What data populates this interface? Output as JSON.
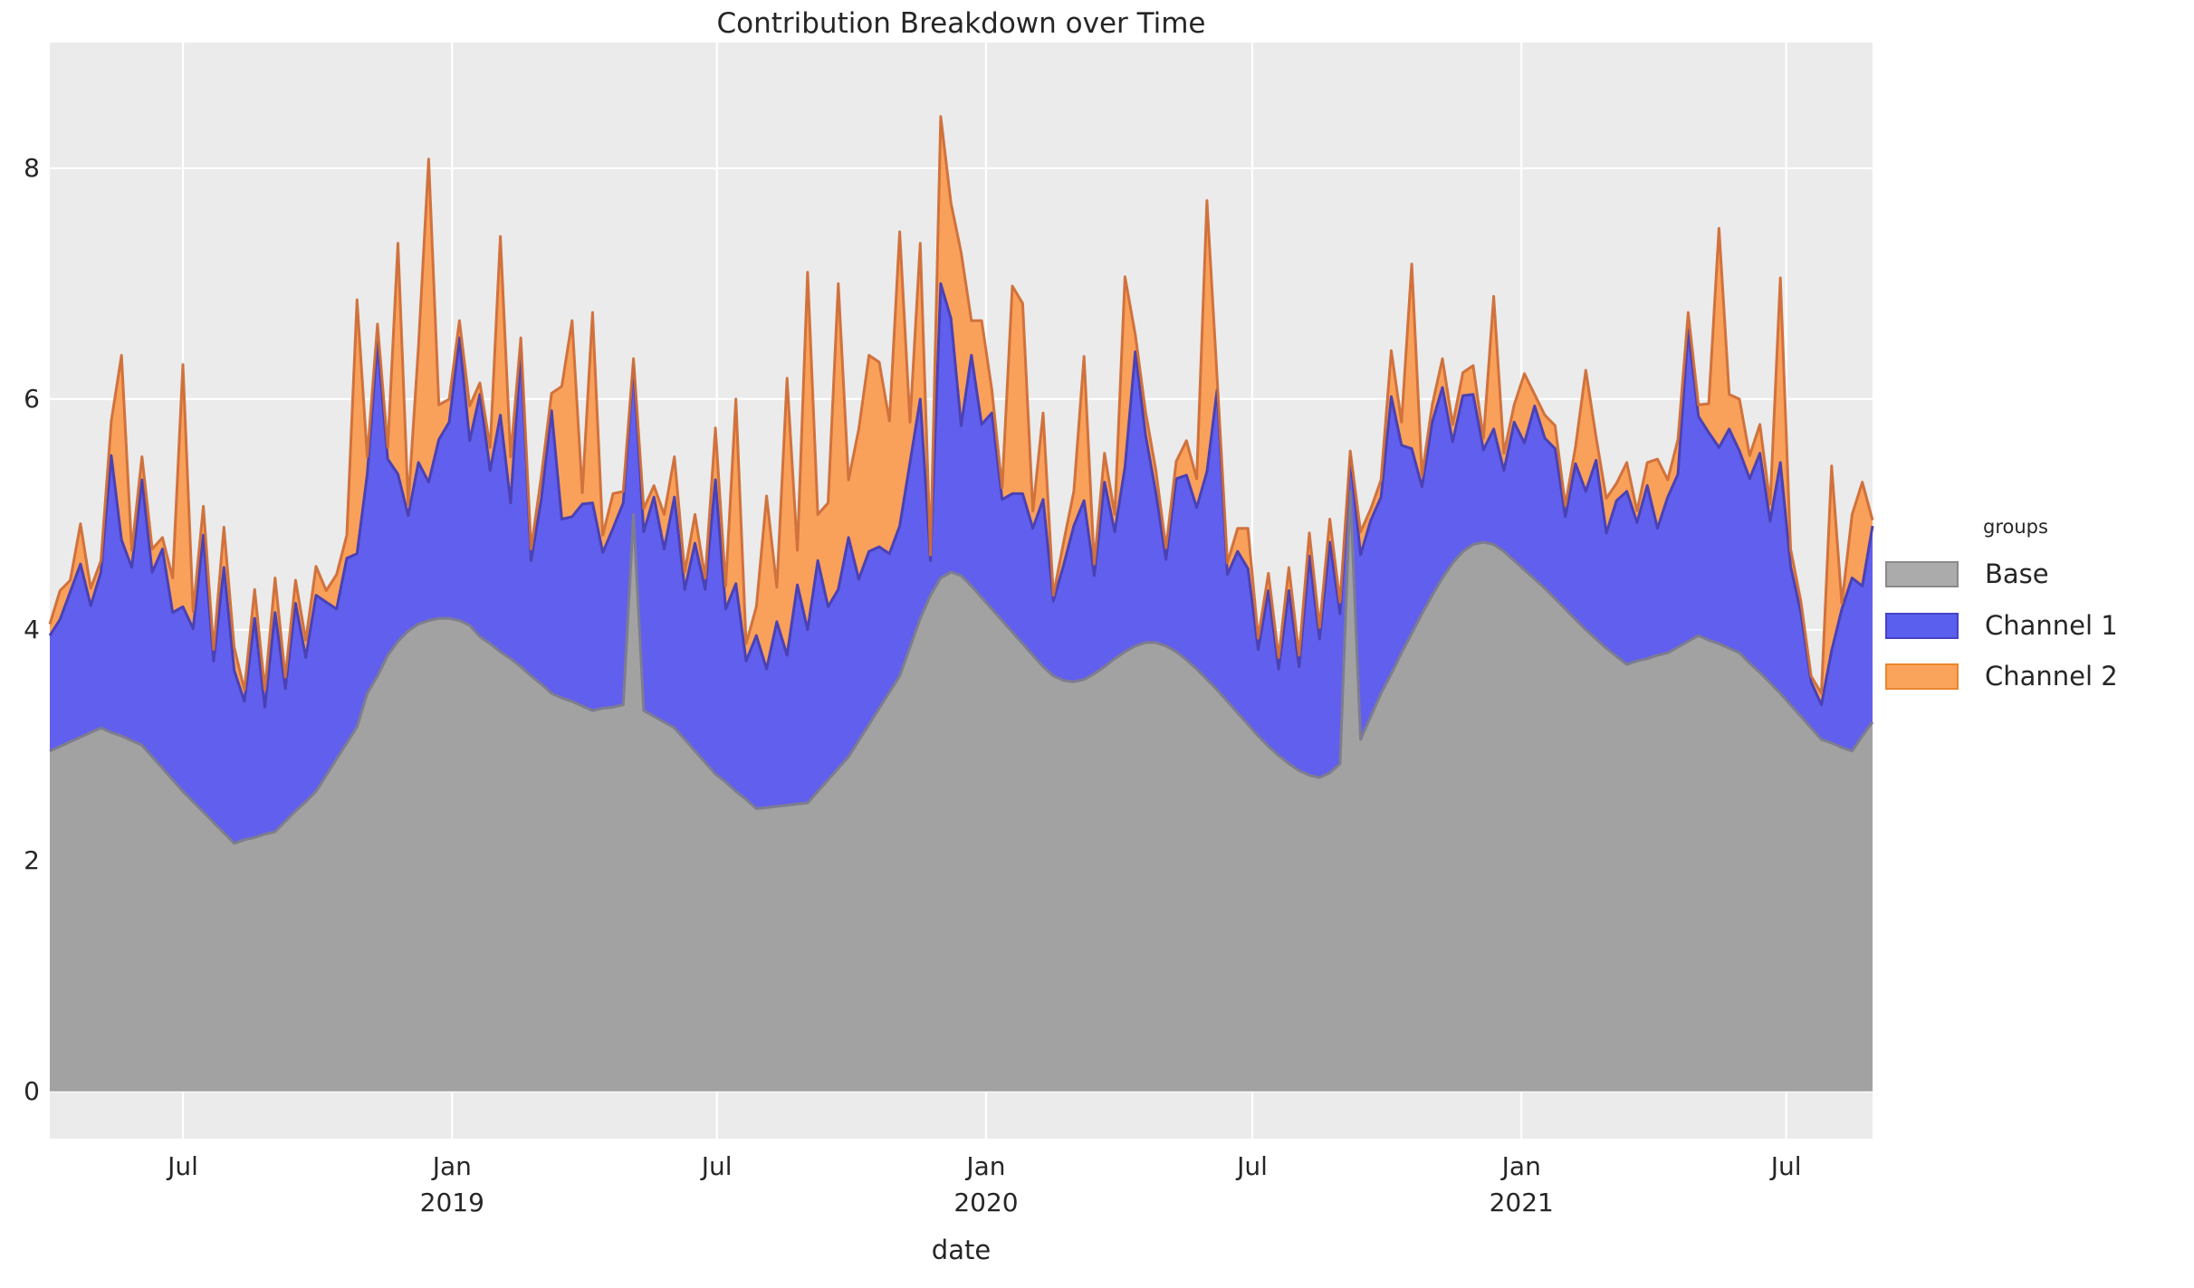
{
  "figure": {
    "title": "Contribution Breakdown over Time",
    "xlabel": "date",
    "background": "#ffffff",
    "plot_background": "#ebebeb",
    "grid_color": "#ffffff"
  },
  "legend": {
    "title": "groups",
    "items": [
      {
        "label": "Base",
        "fill": "#ababab",
        "edge": "#8a8a8a"
      },
      {
        "label": "Channel 1",
        "fill": "#5a5fee",
        "edge": "#4743c6"
      },
      {
        "label": "Channel 2",
        "fill": "#f9a35b",
        "edge": "#e8862f"
      }
    ]
  },
  "chart_data": {
    "type": "area",
    "stacked": true,
    "title": "Contribution Breakdown over Time",
    "xlabel": "date",
    "ylabel": "",
    "grid": true,
    "legend_position": "right",
    "x_start_date": "2018-04-01",
    "x_step_days": 7,
    "x_total_days": 1246,
    "ylim": [
      -0.41,
      9.09
    ],
    "yticks": [
      0,
      2,
      4,
      6,
      8
    ],
    "xticks": [
      {
        "day": 91,
        "label": "Jul",
        "year": ""
      },
      {
        "day": 275,
        "label": "Jan",
        "year": "2019"
      },
      {
        "day": 456,
        "label": "Jul",
        "year": ""
      },
      {
        "day": 640,
        "label": "Jan",
        "year": "2020"
      },
      {
        "day": 822,
        "label": "Jul",
        "year": ""
      },
      {
        "day": 1006,
        "label": "Jan",
        "year": "2021"
      },
      {
        "day": 1187,
        "label": "Jul",
        "year": ""
      }
    ],
    "series": [
      {
        "name": "Base",
        "fill": "#a2a2a2",
        "edge": "#7d7d8f",
        "values": [
          2.95,
          2.99,
          3.03,
          3.07,
          3.11,
          3.15,
          3.11,
          3.08,
          3.04,
          3.0,
          2.9,
          2.8,
          2.7,
          2.6,
          2.51,
          2.42,
          2.33,
          2.24,
          2.15,
          2.18,
          2.2,
          2.23,
          2.25,
          2.34,
          2.43,
          2.51,
          2.6,
          2.74,
          2.88,
          3.02,
          3.16,
          3.45,
          3.6,
          3.78,
          3.9,
          3.99,
          4.05,
          4.08,
          4.1,
          4.1,
          4.08,
          4.04,
          3.94,
          3.88,
          3.81,
          3.75,
          3.68,
          3.6,
          3.53,
          3.45,
          3.41,
          3.38,
          3.34,
          3.3,
          3.32,
          3.33,
          3.35,
          5.0,
          3.3,
          3.25,
          3.2,
          3.15,
          3.05,
          2.95,
          2.85,
          2.75,
          2.68,
          2.6,
          2.53,
          2.45,
          2.46,
          2.47,
          2.48,
          2.49,
          2.5,
          2.6,
          2.7,
          2.8,
          2.9,
          3.04,
          3.18,
          3.32,
          3.46,
          3.6,
          3.85,
          4.1,
          4.3,
          4.45,
          4.5,
          4.47,
          4.38,
          4.28,
          4.18,
          4.08,
          3.98,
          3.88,
          3.78,
          3.68,
          3.6,
          3.56,
          3.55,
          3.57,
          3.62,
          3.68,
          3.75,
          3.81,
          3.86,
          3.89,
          3.89,
          3.86,
          3.81,
          3.74,
          3.66,
          3.57,
          3.48,
          3.38,
          3.28,
          3.18,
          3.08,
          2.99,
          2.91,
          2.84,
          2.78,
          2.74,
          2.72,
          2.76,
          2.84,
          5.2,
          3.05,
          3.25,
          3.45,
          3.62,
          3.8,
          3.97,
          4.14,
          4.3,
          4.45,
          4.58,
          4.68,
          4.74,
          4.76,
          4.74,
          4.68,
          4.6,
          4.52,
          4.44,
          4.36,
          4.27,
          4.18,
          4.09,
          4.0,
          3.92,
          3.84,
          3.77,
          3.7,
          3.73,
          3.75,
          3.78,
          3.8,
          3.85,
          3.9,
          3.95,
          3.91,
          3.88,
          3.84,
          3.8,
          3.71,
          3.63,
          3.54,
          3.45,
          3.35,
          3.25,
          3.15,
          3.05,
          3.02,
          2.98,
          2.95,
          3.08,
          3.2
        ]
      },
      {
        "name": "Channel 1",
        "fill": "#615fed",
        "edge": "#4a41b4",
        "values": [
          1.0,
          1.1,
          1.3,
          1.5,
          1.1,
          1.35,
          2.4,
          1.7,
          1.5,
          2.3,
          1.6,
          1.9,
          1.45,
          1.6,
          1.5,
          2.4,
          1.4,
          2.3,
          1.5,
          1.2,
          1.9,
          1.1,
          1.9,
          1.15,
          1.8,
          1.25,
          1.7,
          1.5,
          1.3,
          1.6,
          1.5,
          1.9,
          2.9,
          1.7,
          1.45,
          1.0,
          1.4,
          1.2,
          1.55,
          1.7,
          2.45,
          1.6,
          2.1,
          1.5,
          2.05,
          1.35,
          2.75,
          1.0,
          1.6,
          2.45,
          1.55,
          1.6,
          1.75,
          1.8,
          1.35,
          1.55,
          1.75,
          1.3,
          1.55,
          1.9,
          1.5,
          2.0,
          1.3,
          1.8,
          1.5,
          2.55,
          1.5,
          1.8,
          1.2,
          1.5,
          1.2,
          1.6,
          1.3,
          1.9,
          1.5,
          2.0,
          1.5,
          1.55,
          1.9,
          1.4,
          1.5,
          1.4,
          1.2,
          1.3,
          1.6,
          1.9,
          0.3,
          2.55,
          2.2,
          1.3,
          2.0,
          1.5,
          1.7,
          1.05,
          1.2,
          1.3,
          1.1,
          1.45,
          0.65,
          1.0,
          1.35,
          1.55,
          0.85,
          1.6,
          1.1,
          1.6,
          2.55,
          1.8,
          1.3,
          0.75,
          1.5,
          1.6,
          1.4,
          1.8,
          2.6,
          1.1,
          1.4,
          1.35,
          0.75,
          1.35,
          0.75,
          1.5,
          0.9,
          1.9,
          1.2,
          2.0,
          1.3,
          0.3,
          1.6,
          1.7,
          1.7,
          2.4,
          1.8,
          1.6,
          1.1,
          1.5,
          1.65,
          1.05,
          1.35,
          1.3,
          0.8,
          1.0,
          0.7,
          1.2,
          1.1,
          1.5,
          1.3,
          1.3,
          0.8,
          1.35,
          1.2,
          1.55,
          1.0,
          1.35,
          1.5,
          1.2,
          1.5,
          1.1,
          1.35,
          1.5,
          2.7,
          1.9,
          1.8,
          1.7,
          1.9,
          1.75,
          1.6,
          1.9,
          1.4,
          2.0,
          1.2,
          0.9,
          0.4,
          0.3,
          0.8,
          1.2,
          1.5,
          1.3,
          1.7
        ]
      },
      {
        "name": "Channel 2",
        "fill": "#f9a05a",
        "edge": "#cf6e38",
        "values": [
          0.1,
          0.25,
          0.1,
          0.35,
          0.15,
          0.1,
          0.3,
          1.6,
          0.15,
          0.2,
          0.2,
          0.1,
          0.3,
          2.1,
          0.15,
          0.25,
          0.1,
          0.35,
          0.2,
          0.1,
          0.25,
          0.15,
          0.3,
          0.1,
          0.2,
          0.15,
          0.25,
          0.1,
          0.3,
          0.2,
          2.2,
          0.15,
          0.15,
          0.1,
          2.0,
          0.1,
          1.0,
          2.8,
          0.3,
          0.2,
          0.15,
          0.3,
          0.1,
          0.2,
          1.55,
          0.4,
          0.1,
          0.1,
          0.2,
          0.15,
          1.15,
          1.7,
          0.1,
          1.65,
          0.15,
          0.3,
          0.1,
          0.05,
          0.2,
          0.1,
          0.3,
          0.35,
          0.15,
          0.25,
          0.1,
          0.45,
          0.2,
          1.6,
          0.15,
          0.25,
          1.5,
          0.3,
          2.4,
          0.3,
          3.1,
          0.4,
          0.9,
          2.65,
          0.5,
          1.3,
          1.7,
          1.6,
          1.15,
          2.55,
          0.35,
          1.35,
          0.05,
          1.45,
          1.0,
          1.5,
          0.3,
          0.9,
          0.2,
          0.1,
          1.8,
          1.65,
          0.15,
          0.75,
          0.05,
          0.2,
          0.3,
          1.25,
          0.1,
          0.25,
          0.15,
          1.65,
          0.15,
          0.2,
          0.2,
          0.1,
          0.15,
          0.3,
          0.25,
          2.35,
          0.1,
          0.1,
          0.2,
          0.35,
          0.1,
          0.15,
          0.1,
          0.2,
          0.1,
          0.2,
          0.1,
          0.2,
          0.1,
          0.05,
          0.2,
          0.1,
          0.15,
          0.4,
          0.2,
          1.6,
          0.1,
          0.15,
          0.25,
          0.15,
          0.2,
          0.25,
          0.1,
          1.15,
          0.15,
          0.15,
          0.6,
          0.1,
          0.2,
          0.2,
          0.1,
          0.15,
          1.05,
          0.2,
          0.3,
          0.15,
          0.25,
          0.1,
          0.2,
          0.6,
          0.15,
          0.3,
          0.15,
          0.1,
          0.25,
          1.9,
          0.3,
          0.45,
          0.2,
          0.25,
          0.15,
          1.6,
          0.15,
          0.1,
          0.05,
          0.1,
          1.6,
          0.05,
          0.55,
          0.9,
          0.05
        ]
      }
    ]
  }
}
